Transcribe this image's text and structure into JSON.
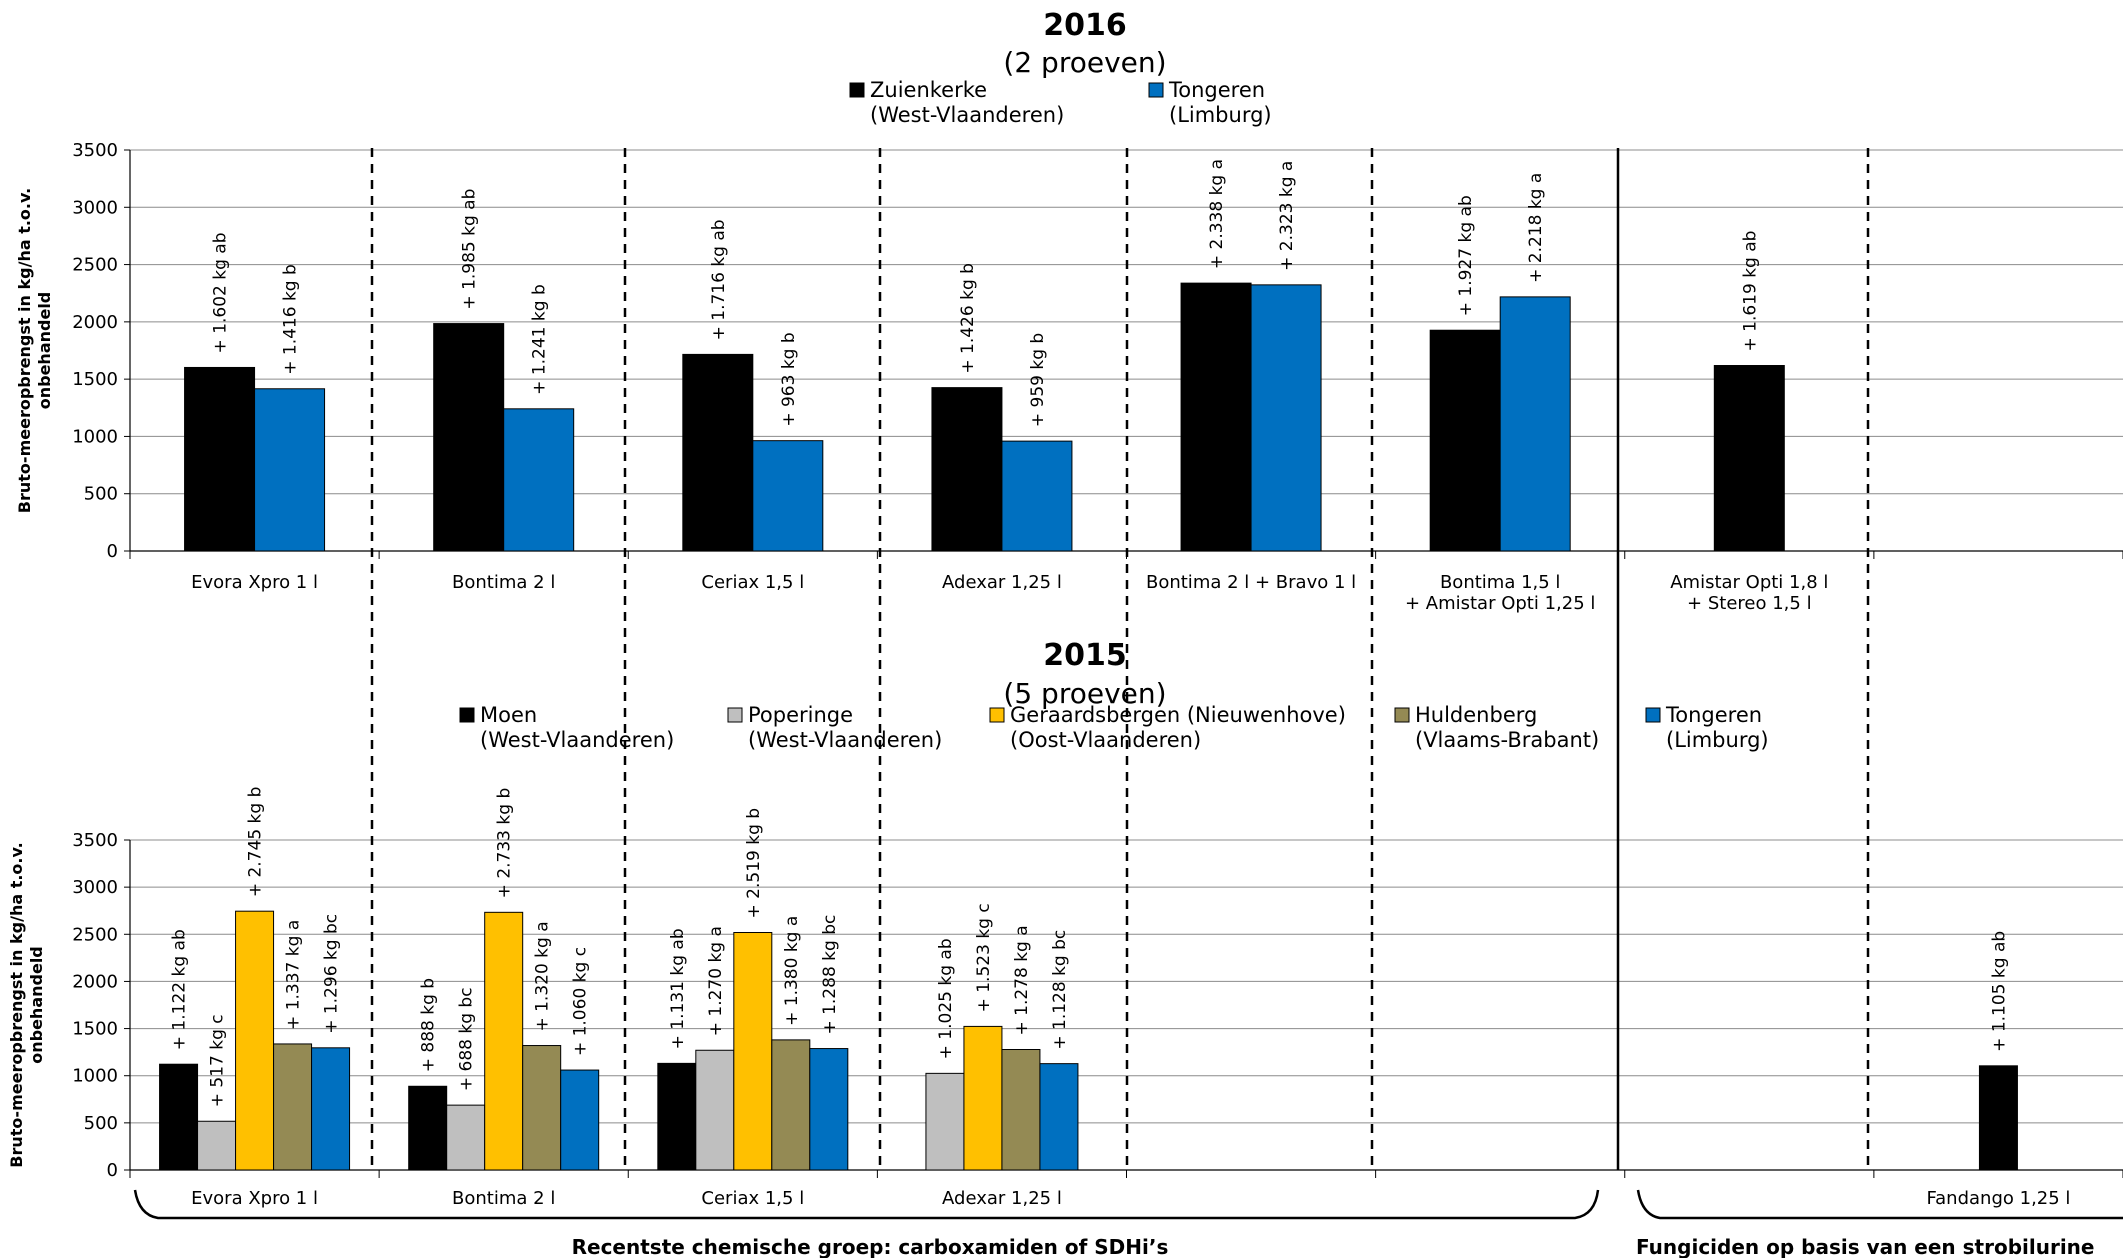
{
  "chart_data": [
    {
      "type": "bar",
      "title": "2016",
      "subtitle": "(2 proeven)",
      "ylabel": [
        "Bruto-meeropbrengst  in kg/ha t.o.v.",
        "onbehandeld"
      ],
      "ylim": [
        0,
        3500
      ],
      "yticks": [
        0,
        500,
        1000,
        1500,
        2000,
        2500,
        3000,
        3500
      ],
      "grid": true,
      "legend_position": "top",
      "categories": [
        [
          "Evora Xpro 1 l"
        ],
        [
          "Bontima 2 l"
        ],
        [
          "Ceriax 1,5 l"
        ],
        [
          "Adexar 1,25 l"
        ],
        [
          "Bontima 2 l + Bravo 1 l"
        ],
        [
          "Bontima 1,5 l",
          "+ Amistar Opti 1,25 l"
        ],
        [
          "Amistar Opti 1,8 l",
          "+ Stereo 1,5 l"
        ],
        [
          ""
        ]
      ],
      "series": [
        {
          "name": [
            "Zuienkerke",
            "(West-Vlaanderen)"
          ],
          "color": "#000000",
          "values": [
            1602,
            1985,
            1716,
            1426,
            2338,
            1927,
            1619,
            null
          ],
          "labels": [
            "+ 1.602 kg ab",
            "+ 1.985 kg ab",
            "+ 1.716 kg ab",
            "+ 1.426 kg b",
            "+ 2.338 kg a",
            "+ 1.927 kg ab",
            "+ 1.619 kg ab",
            null
          ]
        },
        {
          "name": [
            "Tongeren",
            "(Limburg)"
          ],
          "color": "#0070C0",
          "values": [
            1416,
            1241,
            963,
            959,
            2323,
            2218,
            null,
            null
          ],
          "labels": [
            "+ 1.416 kg b",
            "+ 1.241 kg b",
            "+ 963 kg b",
            "+ 959 kg b",
            "+ 2.323 kg a",
            "+ 2.218 kg a",
            null,
            null
          ]
        }
      ]
    },
    {
      "type": "bar",
      "title": "2015",
      "subtitle": "(5 proeven)",
      "ylabel": [
        "Bruto-meeropbrengst  in kg/ha t.o.v.",
        "onbehandeld"
      ],
      "ylim": [
        0,
        3500
      ],
      "yticks": [
        0,
        500,
        1000,
        1500,
        2000,
        2500,
        3000,
        3500
      ],
      "grid": true,
      "legend_position": "top",
      "categories": [
        [
          "Evora Xpro 1 l"
        ],
        [
          "Bontima 2 l"
        ],
        [
          "Ceriax 1,5 l"
        ],
        [
          "Adexar 1,25 l"
        ],
        [
          ""
        ],
        [
          ""
        ],
        [
          ""
        ],
        [
          "Fandango 1,25 l"
        ]
      ],
      "series": [
        {
          "name": [
            "Moen",
            "(West-Vlaanderen)"
          ],
          "color": "#000000",
          "values": [
            1122,
            888,
            1131,
            null,
            null,
            null,
            null,
            1105
          ],
          "labels": [
            "+ 1.122 kg ab",
            "+ 888 kg b",
            "+ 1.131 kg ab",
            null,
            null,
            null,
            null,
            "+ 1.105 kg ab"
          ]
        },
        {
          "name": [
            "Poperinge",
            "(West-Vlaanderen)"
          ],
          "color": "#BFBFBF",
          "values": [
            517,
            688,
            1270,
            1025,
            null,
            null,
            null,
            null
          ],
          "labels": [
            "+ 517 kg c",
            "+ 688 kg bc",
            "+ 1.270 kg a",
            "+ 1.025 kg ab",
            null,
            null,
            null,
            null
          ]
        },
        {
          "name": [
            "Geraardsbergen (Nieuwenhove)",
            "(Oost-Vlaanderen)"
          ],
          "color": "#FFC000",
          "values": [
            2745,
            2733,
            2519,
            1523,
            null,
            null,
            null,
            null
          ],
          "labels": [
            "+ 2.745 kg b",
            "+ 2.733 kg b",
            "+ 2.519 kg b",
            "+ 1.523 kg c",
            null,
            null,
            null,
            null
          ]
        },
        {
          "name": [
            "Huldenberg",
            "(Vlaams-Brabant)"
          ],
          "color": "#948A54",
          "values": [
            1337,
            1320,
            1380,
            1278,
            null,
            null,
            null,
            null
          ],
          "labels": [
            "+ 1.337 kg a",
            "+ 1.320 kg a",
            "+ 1.380 kg a",
            "+ 1.278 kg a",
            null,
            null,
            null,
            null
          ]
        },
        {
          "name": [
            "Tongeren",
            "(Limburg)"
          ],
          "color": "#0070C0",
          "values": [
            1296,
            1060,
            1288,
            1128,
            null,
            null,
            null,
            null
          ],
          "labels": [
            "+ 1.296 kg bc",
            "+ 1.060 kg c",
            "+ 1.288 kg bc",
            "+ 1.128 kg bc",
            null,
            null,
            null,
            null
          ]
        }
      ]
    }
  ],
  "groups": [
    "Recentste chemische groep: carboxamiden of SDHi’s",
    "Fungiciden op basis van een strobilurine"
  ]
}
